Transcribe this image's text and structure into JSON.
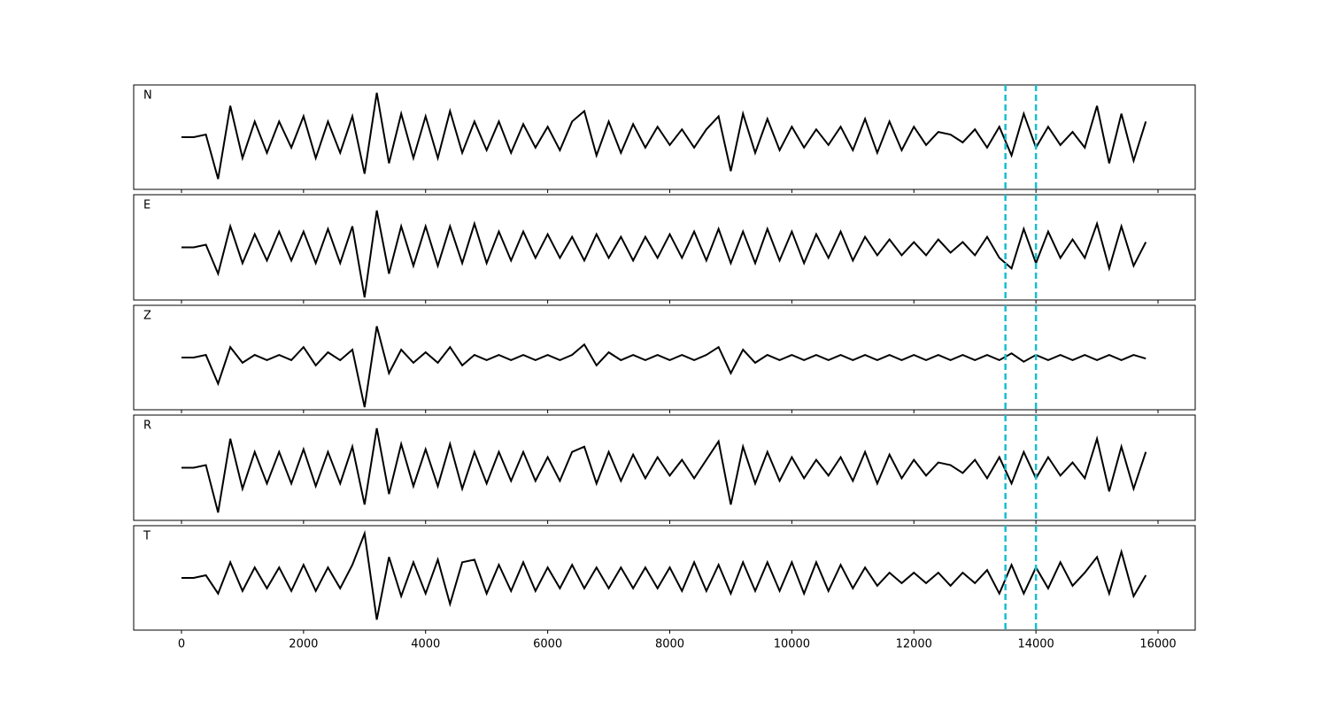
{
  "chart_data": {
    "type": "line",
    "layout": "stacked",
    "x": [
      0,
      200,
      400,
      600,
      800,
      1000,
      1200,
      1400,
      1600,
      1800,
      2000,
      2200,
      2400,
      2600,
      2800,
      3000,
      3200,
      3400,
      3600,
      3800,
      4000,
      4200,
      4400,
      4600,
      4800,
      5000,
      5200,
      5400,
      5600,
      5800,
      6000,
      6200,
      6400,
      6600,
      6800,
      7000,
      7200,
      7400,
      7600,
      7800,
      8000,
      8200,
      8400,
      8600,
      8800,
      9000,
      9200,
      9400,
      9600,
      9800,
      10000,
      10200,
      10400,
      10600,
      10800,
      11000,
      11200,
      11400,
      11600,
      11800,
      12000,
      12200,
      12400,
      12600,
      12800,
      13000,
      13200,
      13400,
      13600,
      13800,
      14000,
      14200,
      14400,
      14600,
      14800,
      15000,
      15200,
      15400,
      15600,
      15800
    ],
    "xlim": [
      -783,
      16609
    ],
    "xticks": [
      0,
      2000,
      4000,
      6000,
      8000,
      10000,
      12000,
      14000,
      16000
    ],
    "ylim": [
      -1,
      1
    ],
    "vlines": [
      13500,
      14000
    ],
    "vline_color": "#17becf",
    "vline_dashed": true,
    "series": [
      {
        "name": "N",
        "color": "#000000",
        "values": [
          0,
          0,
          0.05,
          -0.8,
          0.6,
          -0.4,
          0.3,
          -0.3,
          0.3,
          -0.2,
          0.4,
          -0.4,
          0.3,
          -0.3,
          0.4,
          -0.7,
          0.85,
          -0.5,
          0.45,
          -0.4,
          0.4,
          -0.4,
          0.5,
          -0.3,
          0.3,
          -0.25,
          0.3,
          -0.3,
          0.25,
          -0.2,
          0.2,
          -0.25,
          0.3,
          0.5,
          -0.35,
          0.3,
          -0.3,
          0.25,
          -0.2,
          0.2,
          -0.15,
          0.15,
          -0.2,
          0.15,
          0.4,
          -0.65,
          0.45,
          -0.3,
          0.35,
          -0.25,
          0.2,
          -0.2,
          0.15,
          -0.15,
          0.2,
          -0.25,
          0.35,
          -0.3,
          0.3,
          -0.25,
          0.2,
          -0.15,
          0.1,
          0.05,
          -0.1,
          0.15,
          -0.2,
          0.2,
          -0.35,
          0.45,
          -0.2,
          0.2,
          -0.15,
          0.1,
          -0.2,
          0.6,
          -0.5,
          0.45,
          -0.45,
          0.3
        ]
      },
      {
        "name": "E",
        "color": "#000000",
        "values": [
          0,
          0,
          0.05,
          -0.5,
          0.4,
          -0.3,
          0.25,
          -0.25,
          0.3,
          -0.25,
          0.3,
          -0.3,
          0.35,
          -0.3,
          0.4,
          -0.95,
          0.7,
          -0.5,
          0.4,
          -0.35,
          0.4,
          -0.35,
          0.4,
          -0.3,
          0.45,
          -0.3,
          0.3,
          -0.25,
          0.3,
          -0.2,
          0.25,
          -0.2,
          0.2,
          -0.25,
          0.25,
          -0.2,
          0.2,
          -0.25,
          0.2,
          -0.2,
          0.25,
          -0.2,
          0.3,
          -0.25,
          0.35,
          -0.3,
          0.3,
          -0.3,
          0.35,
          -0.25,
          0.3,
          -0.3,
          0.25,
          -0.2,
          0.3,
          -0.25,
          0.2,
          -0.15,
          0.15,
          -0.15,
          0.1,
          -0.15,
          0.15,
          -0.1,
          0.1,
          -0.15,
          0.2,
          -0.2,
          -0.4,
          0.35,
          -0.3,
          0.3,
          -0.2,
          0.15,
          -0.2,
          0.45,
          -0.4,
          0.4,
          -0.35,
          0.1
        ]
      },
      {
        "name": "Z",
        "color": "#000000",
        "values": [
          0,
          0,
          0.05,
          -0.5,
          0.2,
          -0.1,
          0.05,
          -0.05,
          0.05,
          -0.05,
          0.2,
          -0.15,
          0.1,
          -0.05,
          0.15,
          -0.95,
          0.6,
          -0.3,
          0.15,
          -0.1,
          0.1,
          -0.1,
          0.2,
          -0.15,
          0.05,
          -0.05,
          0.05,
          -0.05,
          0.05,
          -0.05,
          0.05,
          -0.05,
          0.05,
          0.25,
          -0.15,
          0.1,
          -0.05,
          0.05,
          -0.05,
          0.05,
          -0.05,
          0.05,
          -0.05,
          0.05,
          0.2,
          -0.3,
          0.15,
          -0.1,
          0.05,
          -0.05,
          0.05,
          -0.05,
          0.05,
          -0.05,
          0.05,
          -0.05,
          0.05,
          -0.05,
          0.05,
          -0.05,
          0.05,
          -0.05,
          0.05,
          -0.05,
          0.05,
          -0.05,
          0.05,
          -0.05,
          0.08,
          -0.08,
          0.05,
          -0.05,
          0.05,
          -0.05,
          0.05,
          -0.05,
          0.05,
          -0.05,
          0.05,
          -0.02
        ]
      },
      {
        "name": "R",
        "color": "#000000",
        "values": [
          0,
          0,
          0.05,
          -0.85,
          0.55,
          -0.4,
          0.3,
          -0.3,
          0.3,
          -0.3,
          0.35,
          -0.35,
          0.3,
          -0.3,
          0.4,
          -0.7,
          0.75,
          -0.5,
          0.45,
          -0.35,
          0.35,
          -0.35,
          0.45,
          -0.4,
          0.3,
          -0.3,
          0.3,
          -0.25,
          0.3,
          -0.25,
          0.2,
          -0.25,
          0.3,
          0.4,
          -0.3,
          0.3,
          -0.25,
          0.25,
          -0.2,
          0.2,
          -0.15,
          0.15,
          -0.2,
          0.15,
          0.5,
          -0.7,
          0.4,
          -0.3,
          0.3,
          -0.25,
          0.2,
          -0.2,
          0.15,
          -0.15,
          0.2,
          -0.25,
          0.3,
          -0.3,
          0.25,
          -0.2,
          0.15,
          -0.15,
          0.1,
          0.05,
          -0.1,
          0.15,
          -0.2,
          0.2,
          -0.3,
          0.3,
          -0.2,
          0.2,
          -0.15,
          0.1,
          -0.2,
          0.55,
          -0.45,
          0.4,
          -0.4,
          0.3
        ]
      },
      {
        "name": "T",
        "color": "#000000",
        "values": [
          0,
          0,
          0.05,
          -0.3,
          0.3,
          -0.25,
          0.2,
          -0.2,
          0.2,
          -0.25,
          0.25,
          -0.25,
          0.2,
          -0.2,
          0.25,
          0.85,
          -0.8,
          0.4,
          -0.35,
          0.3,
          -0.3,
          0.35,
          -0.5,
          0.3,
          0.35,
          -0.3,
          0.25,
          -0.25,
          0.3,
          -0.25,
          0.2,
          -0.2,
          0.25,
          -0.2,
          0.2,
          -0.2,
          0.2,
          -0.2,
          0.2,
          -0.2,
          0.2,
          -0.25,
          0.3,
          -0.25,
          0.25,
          -0.3,
          0.3,
          -0.25,
          0.3,
          -0.25,
          0.3,
          -0.3,
          0.3,
          -0.25,
          0.25,
          -0.2,
          0.2,
          -0.15,
          0.1,
          -0.1,
          0.1,
          -0.1,
          0.1,
          -0.15,
          0.1,
          -0.1,
          0.15,
          -0.3,
          0.25,
          -0.3,
          0.2,
          -0.2,
          0.3,
          -0.15,
          0.1,
          0.4,
          -0.3,
          0.5,
          -0.35,
          0.05
        ]
      }
    ]
  }
}
